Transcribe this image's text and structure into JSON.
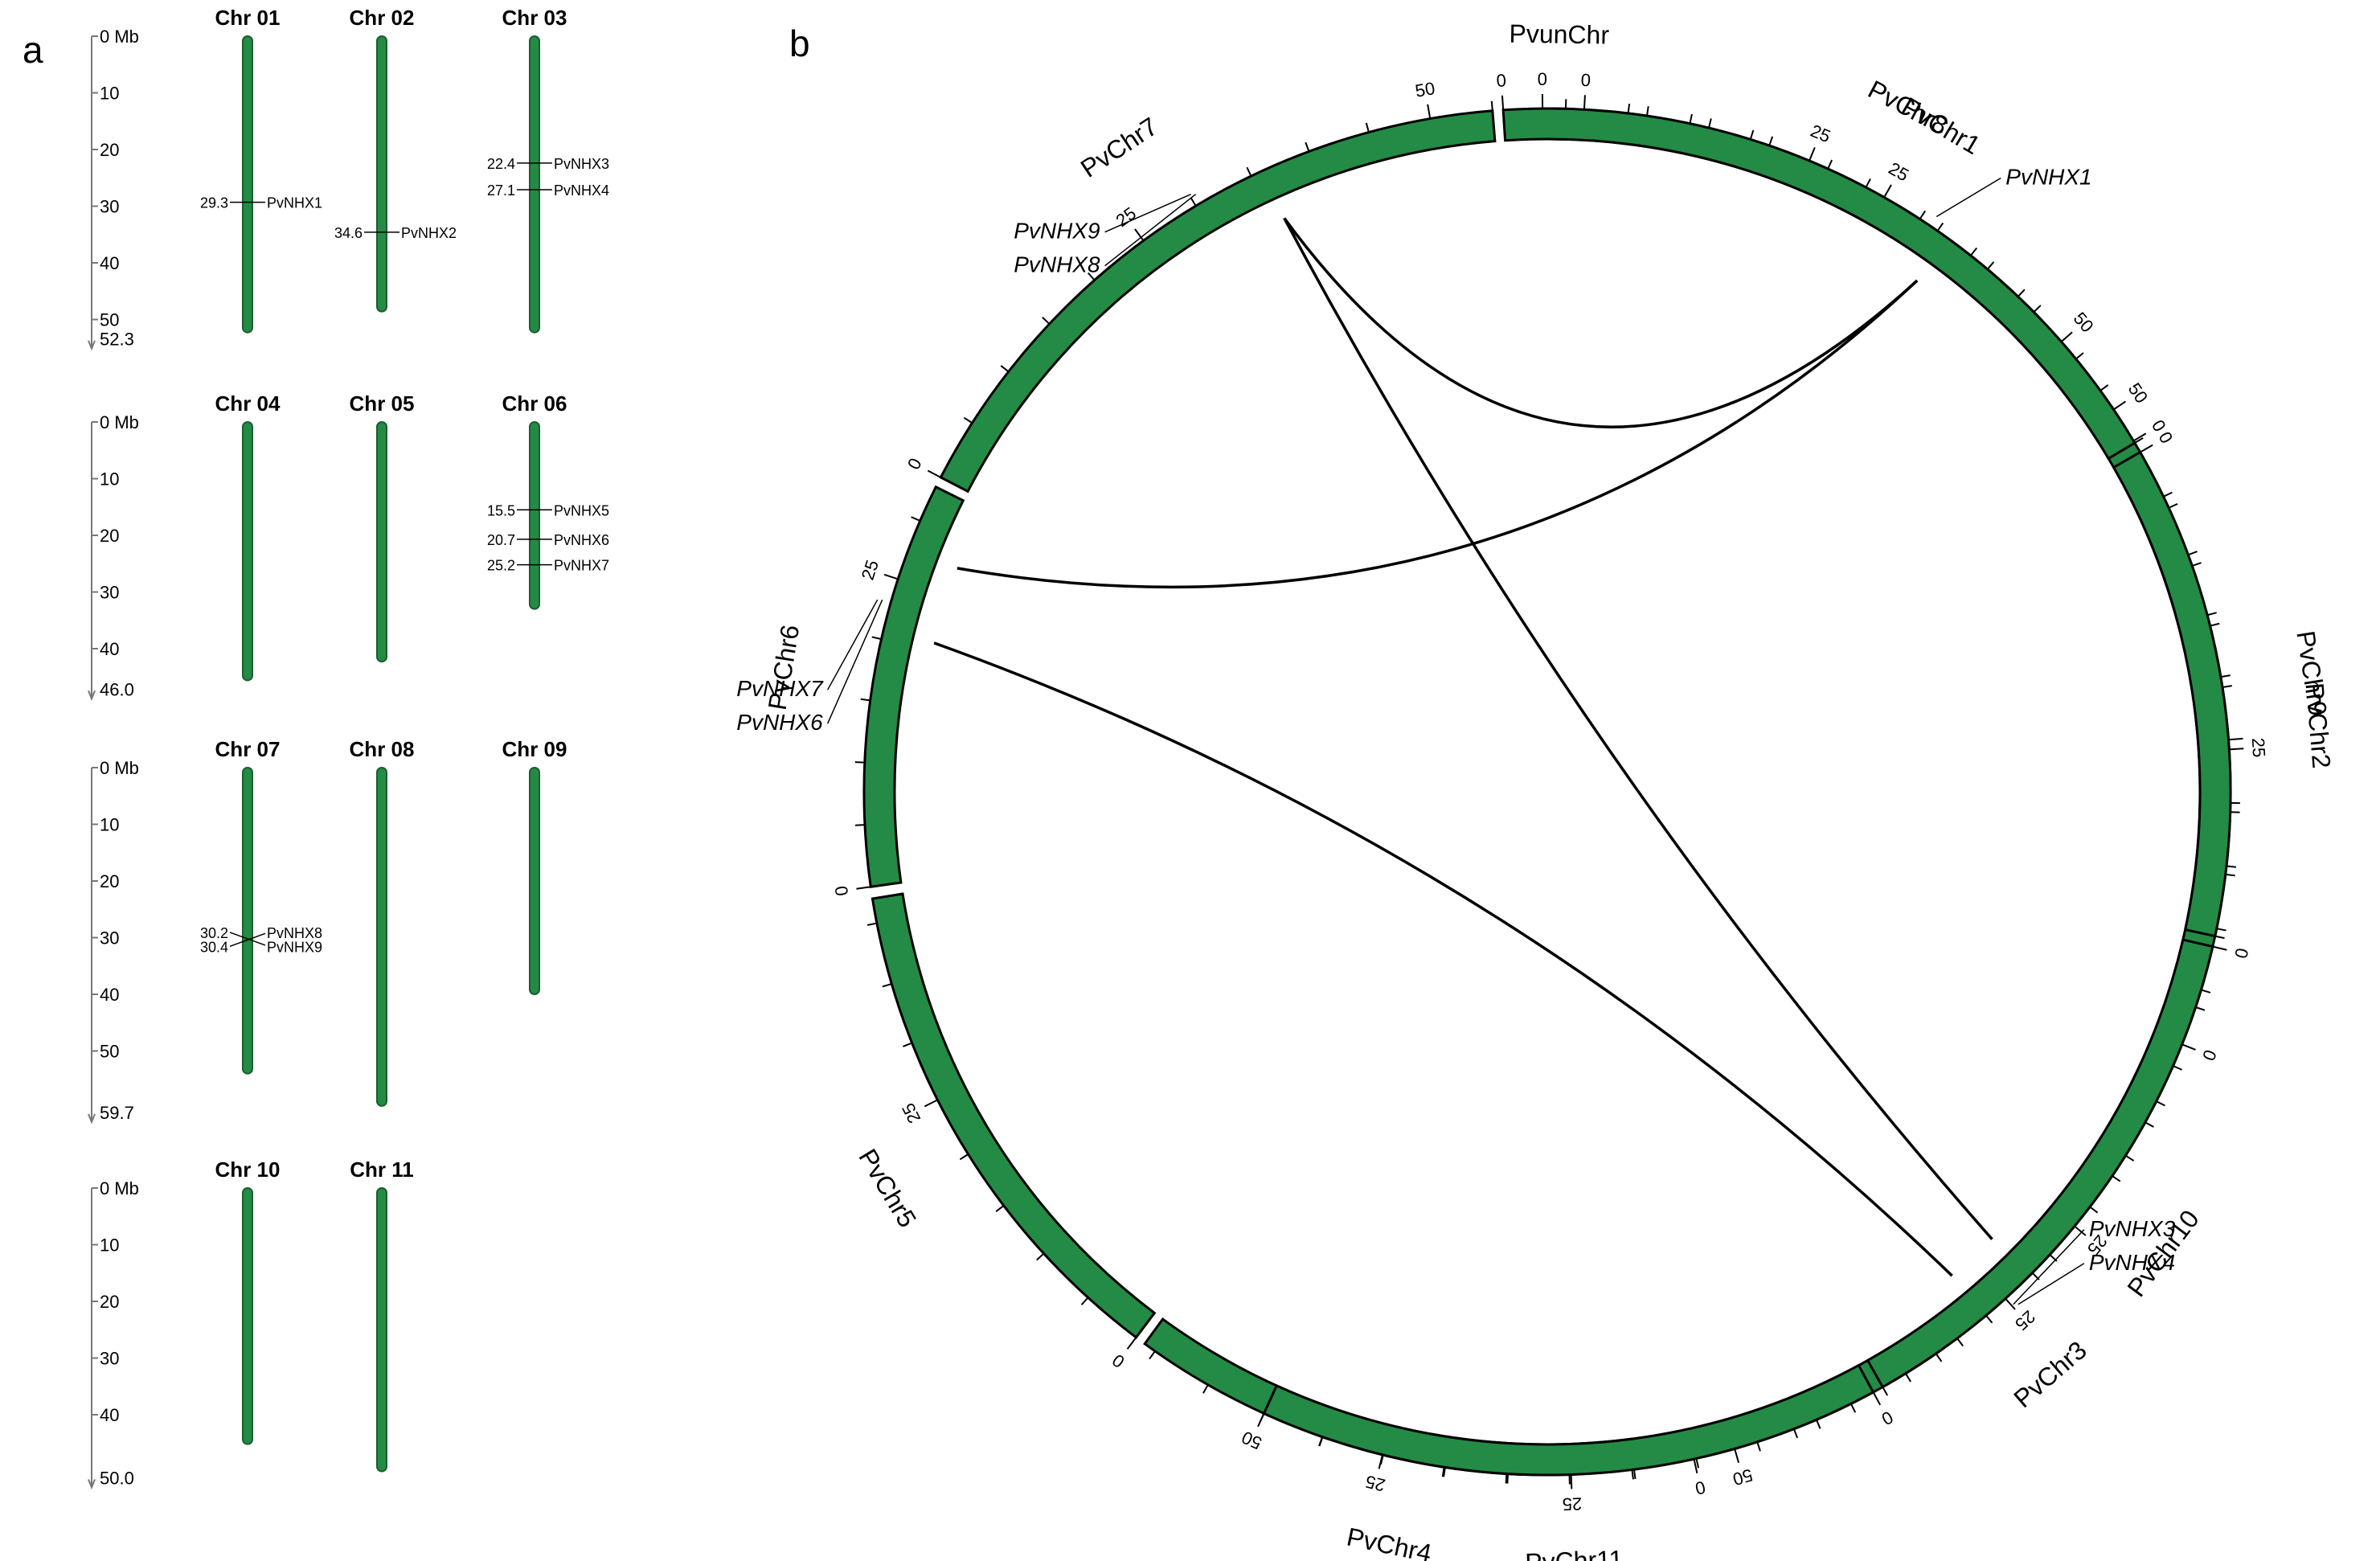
{
  "panel_labels": {
    "a": "a",
    "b": "b"
  },
  "panel_a": {
    "colors": {
      "chromosome": "#238b45",
      "outline": "#1a5e30",
      "axis": "#777777"
    },
    "rows": [
      {
        "scale": {
          "ticks": [
            "0 Mb",
            "10",
            "20",
            "30",
            "40",
            "50"
          ],
          "tick_values": [
            0,
            10,
            20,
            30,
            40,
            50
          ],
          "end_label": "52.3",
          "end_value": 52.3
        },
        "chromosomes": [
          {
            "name": "Chr 01",
            "length": 52.3,
            "genes": [
              {
                "pos_label": "29.3",
                "pos": 29.3,
                "name": "PvNHX1"
              }
            ]
          },
          {
            "name": "Chr 02",
            "length": 48.6,
            "genes": [
              {
                "pos_label": "34.6",
                "pos": 34.6,
                "name": "PvNHX2"
              }
            ]
          },
          {
            "name": "Chr 03",
            "length": 52.3,
            "genes": [
              {
                "pos_label": "22.4",
                "pos": 22.4,
                "name": "PvNHX3"
              },
              {
                "pos_label": "27.1",
                "pos": 27.1,
                "name": "PvNHX4"
              }
            ]
          }
        ]
      },
      {
        "scale": {
          "ticks": [
            "0 Mb",
            "10",
            "20",
            "30",
            "40"
          ],
          "tick_values": [
            0,
            10,
            20,
            30,
            40
          ],
          "end_label": "46.0",
          "end_value": 46.0
        },
        "chromosomes": [
          {
            "name": "Chr 04",
            "length": 45.6,
            "genes": []
          },
          {
            "name": "Chr 05",
            "length": 42.3,
            "genes": []
          },
          {
            "name": "Chr 06",
            "length": 33.0,
            "genes": [
              {
                "pos_label": "15.5",
                "pos": 15.5,
                "name": "PvNHX5"
              },
              {
                "pos_label": "20.7",
                "pos": 20.7,
                "name": "PvNHX6"
              },
              {
                "pos_label": "25.2",
                "pos": 25.2,
                "name": "PvNHX7"
              }
            ]
          }
        ]
      },
      {
        "scale": {
          "ticks": [
            "0 Mb",
            "10",
            "20",
            "30",
            "40",
            "50"
          ],
          "tick_values": [
            0,
            10,
            20,
            30,
            40,
            50
          ],
          "end_label": "59.7",
          "end_value": 59.7
        },
        "chromosomes": [
          {
            "name": "Chr 07",
            "length": 54.0,
            "genes": [
              {
                "pos_label": "30.2",
                "pos": 30.2,
                "name": "PvNHX8"
              },
              {
                "pos_label": "30.4",
                "pos": 30.4,
                "name": "PvNHX9"
              }
            ]
          },
          {
            "name": "Chr 08",
            "length": 59.7,
            "genes": []
          },
          {
            "name": "Chr 09",
            "length": 40.0,
            "genes": []
          }
        ]
      },
      {
        "scale": {
          "ticks": [
            "0 Mb",
            "10",
            "20",
            "30",
            "40"
          ],
          "tick_values": [
            0,
            10,
            20,
            30,
            40
          ],
          "end_label": "50.0",
          "end_value": 50.0
        },
        "chromosomes": [
          {
            "name": "Chr 10",
            "length": 45.2,
            "genes": []
          },
          {
            "name": "Chr 11",
            "length": 50.0,
            "genes": []
          }
        ]
      }
    ]
  },
  "panel_b": {
    "colors": {
      "segment": "#238b45",
      "outline": "#000000",
      "link": "#000000"
    },
    "chromosomes": [
      {
        "name": "PvunChr",
        "length": 2.5,
        "start": 359.6,
        "span": 2.6,
        "ticks": [
          {
            "v": 0,
            "label": "0"
          }
        ]
      },
      {
        "name": "PvChr1",
        "length": 52.0,
        "start": 3.1,
        "span": 55.0,
        "ticks": [
          {
            "v": 0,
            "label": "0"
          },
          {
            "v": 25,
            "label": "25"
          },
          {
            "v": 50,
            "label": "50"
          }
        ]
      },
      {
        "name": "PvChr2",
        "length": 49.0,
        "start": 59.1,
        "span": 52.0,
        "ticks": [
          {
            "v": 0,
            "label": "0"
          }
        ]
      },
      {
        "name": "PvChr3",
        "length": 52.5,
        "start": 111.7,
        "span": 55.0,
        "ticks": [
          {
            "v": 0,
            "label": "0"
          },
          {
            "v": 25,
            "label": "25"
          },
          {
            "v": 50,
            "label": "50"
          }
        ]
      },
      {
        "name": "PvChr4",
        "length": 46.0,
        "start": 167.6,
        "span": 48.5,
        "ticks": [
          {
            "v": 0,
            "label": "0"
          },
          {
            "v": 25,
            "label": "25"
          }
        ]
      },
      {
        "name": "PvChr5",
        "length": 42.0,
        "start": 217.0,
        "span": 44.0,
        "ticks": [
          {
            "v": 0,
            "label": "0"
          },
          {
            "v": 25,
            "label": "25"
          }
        ]
      },
      {
        "name": "PvChr6",
        "length": 33.0,
        "start": 262.0,
        "span": 34.5,
        "ticks": [
          {
            "v": 0,
            "label": "0"
          },
          {
            "v": 25,
            "label": "25"
          }
        ]
      },
      {
        "name": "PvChr7",
        "length": 55.0,
        "start": 297.4,
        "span": 58.0,
        "ticks": [
          {
            "v": 0,
            "label": "0"
          },
          {
            "v": 25,
            "label": "25"
          },
          {
            "v": 50,
            "label": "50"
          }
        ]
      },
      {
        "name": "PvChr8",
        "length": 60.0,
        "start": 356.3,
        "span": 63.0,
        "ticks": [
          {
            "v": 0,
            "label": "0"
          },
          {
            "v": 25,
            "label": "25"
          },
          {
            "v": 50,
            "label": "50"
          }
        ]
      },
      {
        "name": "PvChr9",
        "length": 40.0,
        "start": 420.2,
        "span": 42.0,
        "ticks": [
          {
            "v": 0,
            "label": "0"
          },
          {
            "v": 25,
            "label": "25"
          }
        ]
      },
      {
        "name": "PvChr10",
        "length": 45.0,
        "start": 463.1,
        "span": 47.5,
        "ticks": [
          {
            "v": 0,
            "label": "0"
          },
          {
            "v": 25,
            "label": "25"
          }
        ]
      },
      {
        "name": "PvChr11",
        "length": 50.0,
        "start": 511.5,
        "span": 53.0,
        "ticks": [
          {
            "v": 0,
            "label": "0"
          },
          {
            "v": 25,
            "label": "25"
          },
          {
            "v": 50,
            "label": "50"
          }
        ]
      }
    ],
    "genes": [
      {
        "names": [
          "PvNHX1"
        ],
        "chr": "PvChr1",
        "pos": 29.3
      },
      {
        "names": [
          "PvNHX3",
          "PvNHX4"
        ],
        "chr": "PvChr3",
        "pos": 24.7
      },
      {
        "names": [
          "PvNHX7",
          "PvNHX6"
        ],
        "chr": "PvChr6",
        "pos": 23.0
      },
      {
        "names": [
          "PvNHX9",
          "PvNHX8"
        ],
        "chr": "PvChr7",
        "pos": 30.3
      }
    ],
    "links": [
      {
        "from": "PvChr1",
        "from_pos": 31.0,
        "to": "PvChr7",
        "to_pos": 36.0
      },
      {
        "from": "PvChr1",
        "from_pos": 31.0,
        "to": "PvChr6",
        "to_pos": 27.5
      },
      {
        "from": "PvChr3",
        "from_pos": 22.4,
        "to": "PvChr7",
        "to_pos": 36.0
      },
      {
        "from": "PvChr3",
        "from_pos": 27.1,
        "to": "PvChr6",
        "to_pos": 20.7
      }
    ]
  }
}
